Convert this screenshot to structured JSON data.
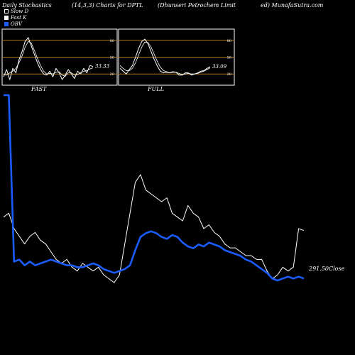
{
  "header": {
    "left": "Daily Stochastics",
    "mid": "(14,3,3) Charts for DPTL",
    "company": "(Dhunseri  Petrochem Limit",
    "right": "ed) MunafaSutra.com"
  },
  "legend": [
    {
      "label": "Slow  D",
      "color": "#ffffff",
      "style": "outline"
    },
    {
      "label": "Fast K",
      "color": "#ffffff",
      "style": "filled"
    },
    {
      "label": "OBV",
      "color": "#1a5cff",
      "style": "filled"
    }
  ],
  "colors": {
    "background": "#000000",
    "panel_border": "#ffffff",
    "level_line": "#b07a1a",
    "obv": "#1a5cff",
    "close": "#ffffff"
  },
  "panels": {
    "fast": {
      "label": "FAST",
      "last_value": "33.33"
    },
    "full": {
      "label": "FULL",
      "last_value": "33.09"
    }
  },
  "close_label": "291.50Close",
  "chart_data": [
    {
      "type": "line",
      "title": "FAST",
      "ylim": [
        0,
        100
      ],
      "yticks": [
        20,
        50,
        80
      ],
      "x": [
        1,
        2,
        3,
        4,
        5,
        6,
        7,
        8,
        9,
        10,
        11,
        12,
        13,
        14,
        15,
        16,
        17,
        18,
        19,
        20,
        21,
        22,
        23,
        24,
        25,
        26,
        27,
        28,
        29,
        30
      ],
      "series": [
        {
          "values": [
            15,
            28,
            10,
            30,
            22,
            45,
            60,
            78,
            85,
            70,
            55,
            40,
            28,
            20,
            18,
            25,
            15,
            30,
            22,
            10,
            18,
            28,
            20,
            12,
            25,
            20,
            30,
            22,
            35,
            33.33
          ]
        },
        {
          "values": [
            20,
            18,
            22,
            25,
            30,
            40,
            52,
            68,
            78,
            75,
            62,
            48,
            35,
            25,
            20,
            21,
            20,
            23,
            24,
            18,
            16,
            22,
            22,
            18,
            19,
            22,
            25,
            26,
            29,
            31
          ]
        }
      ]
    },
    {
      "type": "line",
      "title": "FULL",
      "ylim": [
        0,
        100
      ],
      "yticks": [
        20,
        50,
        80
      ],
      "x": [
        1,
        2,
        3,
        4,
        5,
        6,
        7,
        8,
        9,
        10,
        11,
        12,
        13,
        14,
        15,
        16,
        17,
        18,
        19,
        20,
        21,
        22,
        23,
        24,
        25,
        26,
        27,
        28,
        29,
        30
      ],
      "series": [
        {
          "values": [
            30,
            25,
            20,
            28,
            35,
            50,
            66,
            78,
            82,
            74,
            60,
            46,
            34,
            25,
            22,
            23,
            22,
            24,
            23,
            18,
            18,
            22,
            22,
            18,
            20,
            22,
            25,
            26,
            30,
            33.09
          ]
        },
        {
          "values": [
            35,
            30,
            26,
            26,
            30,
            40,
            54,
            68,
            77,
            76,
            68,
            55,
            42,
            32,
            26,
            24,
            22,
            23,
            23,
            21,
            19,
            20,
            21,
            20,
            20,
            21,
            23,
            25,
            28,
            31
          ]
        }
      ]
    },
    {
      "type": "line",
      "title": "",
      "series": [
        {
          "name": "OBV",
          "values": [
            100,
            100,
            12,
            13,
            10,
            12,
            10,
            11,
            12,
            13,
            12,
            11,
            10,
            10,
            9,
            9,
            10,
            11,
            10,
            8,
            7,
            6,
            7,
            8,
            10,
            18,
            25,
            27,
            28,
            27,
            25,
            24,
            26,
            25,
            22,
            20,
            19,
            21,
            20,
            22,
            21,
            20,
            18,
            17,
            16,
            15,
            13,
            12,
            10,
            8,
            6,
            3,
            2,
            3,
            4,
            3,
            4,
            3
          ]
        },
        {
          "name": "Close",
          "values": [
            295,
            296,
            292,
            290,
            288,
            290,
            291,
            289,
            288,
            286,
            284,
            283,
            284,
            282,
            281,
            283,
            282,
            281,
            282,
            280,
            279,
            278,
            280,
            288,
            296,
            304,
            306,
            302,
            301,
            300,
            299,
            300,
            296,
            295,
            294,
            298,
            296,
            295,
            292,
            293,
            291,
            290,
            288,
            287,
            287,
            286,
            285,
            285,
            284,
            284,
            281,
            279,
            280,
            282,
            281,
            282,
            292,
            291.5
          ]
        }
      ]
    }
  ]
}
